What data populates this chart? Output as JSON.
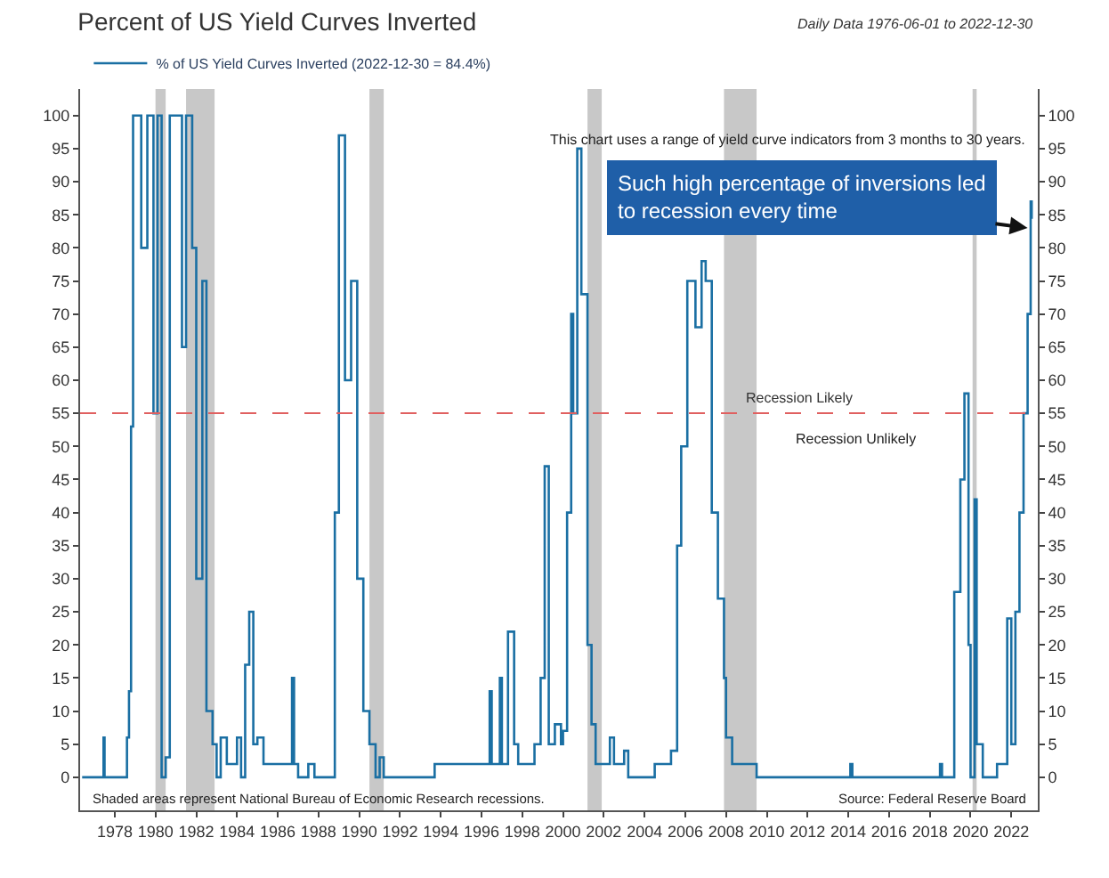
{
  "chart_data": {
    "type": "step",
    "title": "Percent of US Yield Curves Inverted",
    "subtitle": "Daily Data 1976-06-01 to 2022-12-30",
    "series": [
      {
        "name": "% of US Yield Curves Inverted (2022-12-30 = 84.4%)",
        "color": "#1a6fa3",
        "x": [
          1976.4,
          1977.4,
          1977.45,
          1977.5,
          1978.5,
          1978.6,
          1978.7,
          1978.8,
          1978.9,
          1979.3,
          1979.6,
          1979.9,
          1980.1,
          1980.3,
          1980.5,
          1980.7,
          1981.0,
          1981.3,
          1981.5,
          1981.8,
          1982.0,
          1982.3,
          1982.5,
          1982.8,
          1983.0,
          1983.2,
          1983.5,
          1984.0,
          1984.2,
          1984.4,
          1984.6,
          1984.8,
          1985.0,
          1985.3,
          1986.5,
          1986.7,
          1986.8,
          1987.0,
          1987.5,
          1987.8,
          1988.5,
          1988.8,
          1989.0,
          1989.3,
          1989.6,
          1989.9,
          1990.2,
          1990.5,
          1990.8,
          1991.0,
          1991.2,
          1993.5,
          1993.7,
          1996.2,
          1996.4,
          1996.5,
          1996.9,
          1997.0,
          1997.3,
          1997.6,
          1997.8,
          1998.5,
          1998.6,
          1998.9,
          1999.1,
          1999.3,
          1999.6,
          1999.9,
          2000.0,
          2000.2,
          2000.4,
          2000.5,
          2000.7,
          2000.9,
          2001.2,
          2001.4,
          2001.6,
          2002.0,
          2002.3,
          2002.5,
          2003.0,
          2003.2,
          2004.5,
          2005.0,
          2005.3,
          2005.6,
          2005.8,
          2006.1,
          2006.5,
          2006.8,
          2007.0,
          2007.3,
          2007.6,
          2007.9,
          2008.0,
          2008.3,
          2009.3,
          2009.5,
          2014.0,
          2014.1,
          2014.2,
          2018.2,
          2018.5,
          2018.6,
          2019.0,
          2019.2,
          2019.5,
          2019.7,
          2019.9,
          2020.0,
          2020.2,
          2020.3,
          2020.6,
          2021.0,
          2021.3,
          2021.6,
          2021.8,
          2022.0,
          2022.2,
          2022.4,
          2022.6,
          2022.8,
          2022.95,
          2023.0
        ],
        "values": [
          0,
          0,
          6,
          0,
          0,
          6,
          13,
          53,
          100,
          80,
          100,
          55,
          100,
          0,
          3,
          100,
          100,
          65,
          100,
          80,
          30,
          75,
          10,
          5,
          0,
          6,
          2,
          6,
          0,
          17,
          25,
          5,
          6,
          2,
          2,
          15,
          2,
          0,
          2,
          0,
          0,
          40,
          97,
          60,
          75,
          30,
          10,
          5,
          0,
          3,
          0,
          0,
          2,
          2,
          13,
          2,
          15,
          2,
          22,
          5,
          2,
          2,
          5,
          15,
          47,
          5,
          8,
          5,
          7,
          40,
          70,
          55,
          95,
          73,
          20,
          8,
          2,
          2,
          6,
          2,
          4,
          0,
          2,
          2,
          4,
          35,
          50,
          75,
          68,
          78,
          75,
          40,
          27,
          15,
          6,
          2,
          2,
          0,
          0,
          2,
          0,
          0,
          2,
          0,
          0,
          28,
          45,
          58,
          20,
          0,
          42,
          5,
          0,
          0,
          2,
          2,
          24,
          5,
          25,
          40,
          55,
          70,
          87,
          84.4
        ]
      }
    ],
    "xlim": [
      1976.3,
      2023.3
    ],
    "xticks": [
      1978,
      1980,
      1982,
      1984,
      1986,
      1988,
      1990,
      1992,
      1994,
      1996,
      1998,
      2000,
      2002,
      2004,
      2006,
      2008,
      2010,
      2012,
      2014,
      2016,
      2018,
      2020,
      2022
    ],
    "ylim": [
      -5,
      104
    ],
    "yticks": [
      0,
      5,
      10,
      15,
      20,
      25,
      30,
      35,
      40,
      45,
      50,
      55,
      60,
      65,
      70,
      75,
      80,
      85,
      90,
      95,
      100
    ],
    "y2lim": [
      -5,
      104
    ],
    "y2ticks": [
      0,
      5,
      10,
      15,
      20,
      25,
      30,
      35,
      40,
      45,
      50,
      55,
      60,
      65,
      70,
      75,
      80,
      85,
      90,
      95,
      100
    ],
    "bands": [
      {
        "axis": "x",
        "from": 1980.0,
        "to": 1980.5,
        "color": "#c8c8c8"
      },
      {
        "axis": "x",
        "from": 1981.5,
        "to": 1982.9,
        "color": "#c8c8c8"
      },
      {
        "axis": "x",
        "from": 1990.5,
        "to": 1991.2,
        "color": "#c8c8c8"
      },
      {
        "axis": "x",
        "from": 2001.2,
        "to": 2001.9,
        "color": "#c8c8c8"
      },
      {
        "axis": "x",
        "from": 2007.9,
        "to": 2009.5,
        "color": "#c8c8c8"
      },
      {
        "axis": "x",
        "from": 2020.1,
        "to": 2020.3,
        "color": "#c8c8c8"
      }
    ],
    "ref_lines": [
      {
        "axis": "y",
        "value": 55,
        "label": "Recession Likely",
        "color": "#e06060",
        "line_style": "dashed"
      }
    ],
    "annotations": [
      "This chart uses a range of yield curve indicators from 3 months to 30 years.",
      {
        "text": "Such high percentage of inversions led to recession every time",
        "x": 2022.8,
        "y": 83
      },
      "Recession Unlikely",
      "Shaded areas represent National Bureau of Economic Research recessions.",
      "Source: Federal Reserve Board"
    ],
    "legend": "top left",
    "grid": false,
    "marker": "none",
    "line_style": "solid"
  }
}
